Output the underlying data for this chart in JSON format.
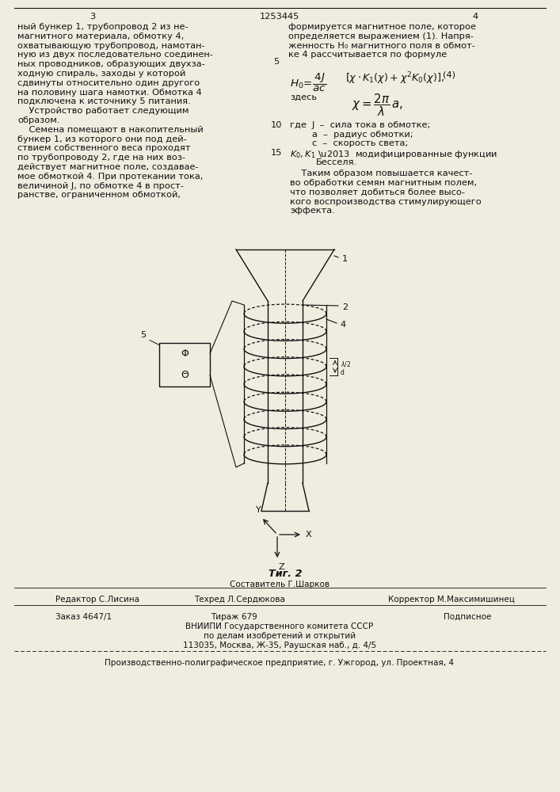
{
  "page_num_left": "3",
  "patent_num": "1253445",
  "page_num_right": "4",
  "col_left_lines": [
    "ный бункер 1, трубопровод 2 из не-",
    "магнитного материала, обмотку 4,",
    "охватывающую трубопровод, намотан-",
    "ную из двух последовательно соединен-",
    "ных проводников, образующих двухза-",
    "ходную спираль, заходы у которой",
    "сдвинуты относительно один другого",
    "на половину шага намотки. Обмотка 4",
    "подключена к источнику 5 питания.",
    "    Устройство работает следующим",
    "образом.",
    "    Семена помещают в накопительный",
    "бункер 1, из которого они под дей-",
    "ствием собственного веса проходят",
    "по трубопроводу 2, где на них воз-",
    "действует магнитное поле, создавае-",
    "мое обмоткой 4. При протекании тока,",
    "величиной J, по обмотке 4 в прост-",
    "ранстве, ограниченном обмоткой,"
  ],
  "col_right_lines": [
    "формируется магнитное поле, которое",
    "определяется выражением (1). Напря-",
    "женность H₀ магнитного поля в обмот-",
    "ке 4 рассчитывается по формуле"
  ],
  "where_lines": [
    "J  –  сила тока в обмотке;",
    "a  –  радиус обмотки;",
    "c  –  скорость света;",
    "K₀,K₁ –  модифицированные функции",
    "              Бесселя."
  ],
  "conclusion_lines": [
    "    Таким образом повышается качест-",
    "во обработки семян магнитным полем,",
    "что позволяет добиться более высо-",
    "кого воспроизводства стимулирующего",
    "эффекта."
  ],
  "fig_label": "Τиг. 2",
  "composer_label": "Составитель Г.Шарков",
  "editor_line": "Редактор С.Лисина",
  "techred_line": "Техред Л.Сердюкова",
  "corrector_line": "Корректор М.Максимишинец",
  "order_line": "Заказ 4647/1",
  "tirazh_line": "Тираж 679",
  "podpisnoe_line": "Подписное",
  "vnipi_line": "ВНИИПИ Государственного комитета СССР",
  "dela_line": "по делам изобретений и открытий",
  "address_line": "113035, Москва, Ж-35, Раушская наб., д. 4/5",
  "factory_line": "Производственно-полиграфическое предприятие, г. Ужгород, ул. Проектная, 4",
  "bg_color": "#f0ece0",
  "text_color": "#111111",
  "font_size": 8.2,
  "font_size_small": 7.5,
  "lh": 11.8
}
